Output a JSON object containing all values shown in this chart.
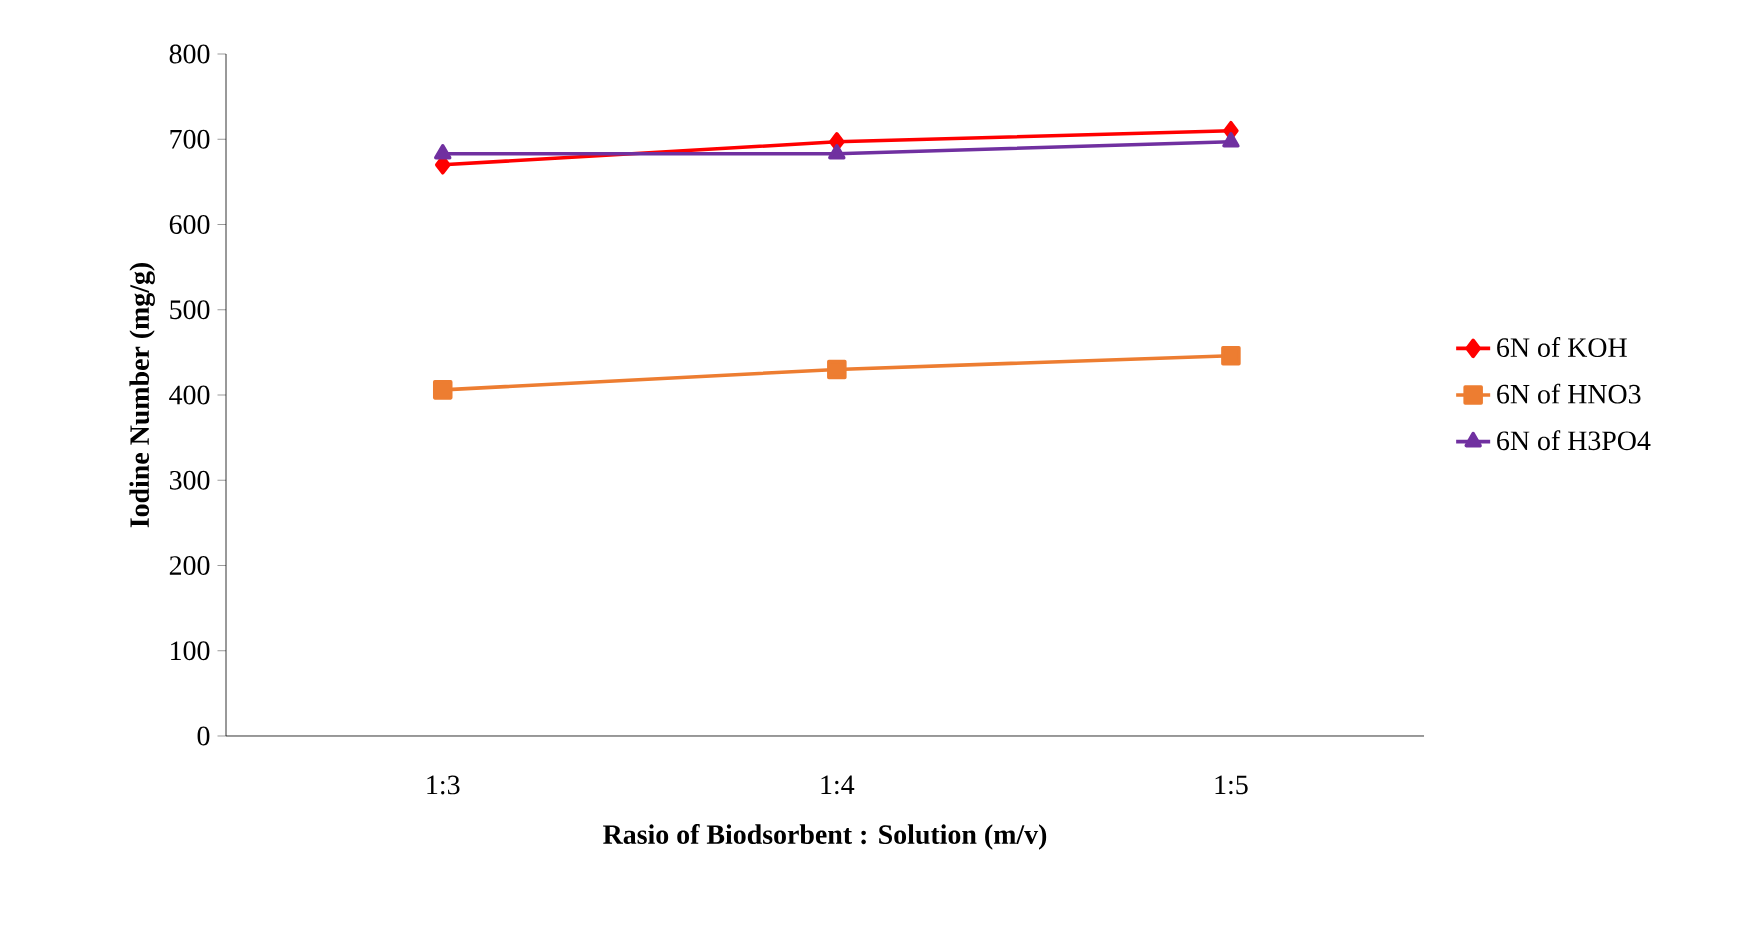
{
  "chart_data": {
    "type": "line",
    "xlabel": "Rasio of Biodsorbent : Solution (m/v)",
    "ylabel": "Iodine Number (mg/g)",
    "categories": [
      "1:3",
      "1:4",
      "1:5"
    ],
    "series": [
      {
        "name": "6N of KOH",
        "color": "#ff0000",
        "marker": "diamond",
        "values": [
          670,
          697,
          710
        ]
      },
      {
        "name": "6N of HNO3",
        "color": "#ed7d31",
        "marker": "square",
        "values": [
          406,
          430,
          446
        ]
      },
      {
        "name": "6N of H3PO4",
        "color": "#7030a0",
        "marker": "triangle",
        "values": [
          683,
          683,
          697
        ]
      }
    ],
    "ylim": [
      0,
      800
    ],
    "yticks": [
      0,
      100,
      200,
      300,
      400,
      500,
      600,
      700,
      800
    ],
    "grid": false,
    "legend": "right"
  }
}
